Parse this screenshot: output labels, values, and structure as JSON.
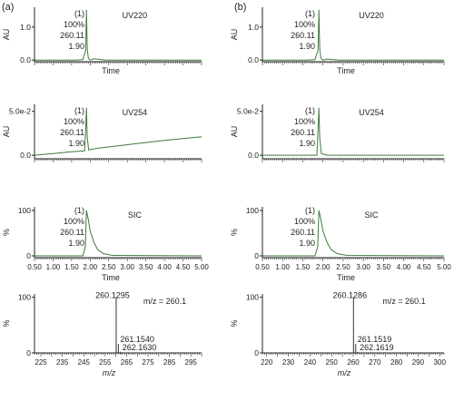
{
  "panel_labels": [
    "(a)",
    "(b)"
  ],
  "chart_data": [
    {
      "id": "a-uv220",
      "panel": "(a)",
      "type": "line",
      "title": "UV220",
      "xlabel": "Time",
      "ylabel": "AU",
      "xlim": [
        0.5,
        5.0
      ],
      "ylim": [
        -0.05,
        1.6
      ],
      "yticks": [
        0.0,
        1.0
      ],
      "ytick_labels": [
        "0.0",
        "1.0"
      ],
      "peak_annotation": [
        "(1)",
        "100%",
        "260.11",
        "1.90"
      ],
      "series": [
        {
          "color": "#3c7a3c",
          "x": [
            0.5,
            1.6,
            1.8,
            1.88,
            1.9,
            1.92,
            1.95,
            2.0,
            2.1,
            2.4,
            3.0,
            3.6,
            4.2,
            5.0
          ],
          "y": [
            0.0,
            0.0,
            0.01,
            0.3,
            1.52,
            0.35,
            0.05,
            0.0,
            0.04,
            0.0,
            0.0,
            0.0,
            0.0,
            0.0
          ]
        }
      ]
    },
    {
      "id": "a-uv254",
      "panel": "(a)",
      "type": "line",
      "title": "UV254",
      "xlabel": "",
      "ylabel": "AU",
      "xlim": [
        0.5,
        5.0
      ],
      "ylim": [
        -0.004,
        0.058
      ],
      "yticks": [
        0.0,
        0.05
      ],
      "ytick_labels": [
        "0.0",
        "5.0e-2"
      ],
      "peak_annotation": [
        "(1)",
        "100%",
        "260.11",
        "1.90"
      ],
      "series": [
        {
          "color": "#3c7a3c",
          "x": [
            0.5,
            1.0,
            1.5,
            1.85,
            1.88,
            1.9,
            1.92,
            1.96,
            2.2,
            3.0,
            4.0,
            5.0
          ],
          "y": [
            0.0,
            0.002,
            0.004,
            0.005,
            0.03,
            0.054,
            0.02,
            0.006,
            0.008,
            0.012,
            0.017,
            0.021
          ]
        }
      ]
    },
    {
      "id": "a-sic",
      "panel": "(a)",
      "type": "line",
      "title": "SIC",
      "xlabel": "Time",
      "ylabel": "%",
      "xlim": [
        0.5,
        5.0
      ],
      "ylim": [
        -4,
        108
      ],
      "yticks": [
        0,
        100
      ],
      "ytick_labels": [
        "0",
        "100"
      ],
      "xticks": [
        0.5,
        1.0,
        1.5,
        2.0,
        2.5,
        3.0,
        3.5,
        4.0,
        4.5,
        5.0
      ],
      "xtick_labels": [
        "0.50",
        "1.00",
        "1.50",
        "2.00",
        "2.50",
        "3.00",
        "3.50",
        "4.00",
        "4.50",
        "5.00"
      ],
      "peak_annotation": [
        "(1)",
        "100%",
        "260.11",
        "1.90"
      ],
      "series": [
        {
          "color": "#3c7a3c",
          "x": [
            0.5,
            1.8,
            1.87,
            1.9,
            1.95,
            2.0,
            2.1,
            2.2,
            2.35,
            2.6,
            5.0
          ],
          "y": [
            0,
            0,
            20,
            100,
            80,
            55,
            30,
            14,
            5,
            1,
            0
          ]
        }
      ]
    },
    {
      "id": "a-ms",
      "panel": "(a)",
      "type": "bar",
      "title": "m/z = 260.1",
      "xlabel": "m/z",
      "ylabel": "%",
      "xlim": [
        222,
        300
      ],
      "ylim": [
        0,
        106
      ],
      "yticks": [
        0,
        100
      ],
      "ytick_labels": [
        "0",
        "100"
      ],
      "xticks": [
        225,
        235,
        245,
        255,
        265,
        275,
        285,
        295
      ],
      "xtick_labels": [
        "225",
        "235",
        "245",
        "255",
        "265",
        "275",
        "285",
        "295"
      ],
      "peaks": [
        {
          "x": 260.1295,
          "y": 100,
          "label": "260.1295"
        },
        {
          "x": 261.154,
          "y": 16,
          "label": "261.1540"
        },
        {
          "x": 262.163,
          "y": 2,
          "label": "262.1630"
        }
      ]
    },
    {
      "id": "b-uv220",
      "panel": "(b)",
      "type": "line",
      "title": "UV220",
      "xlabel": "Time",
      "ylabel": "AU",
      "xlim": [
        0.5,
        5.0
      ],
      "ylim": [
        -0.05,
        1.6
      ],
      "yticks": [
        0.0,
        1.0
      ],
      "ytick_labels": [
        "0.0",
        "1.0"
      ],
      "peak_annotation": [
        "(1)",
        "100%",
        "260.11",
        "1.90"
      ],
      "series": [
        {
          "color": "#3c7a3c",
          "x": [
            0.5,
            1.6,
            1.8,
            1.88,
            1.9,
            1.92,
            1.95,
            2.0,
            2.1,
            2.4,
            3.0,
            3.6,
            4.2,
            5.0
          ],
          "y": [
            0.0,
            0.0,
            0.01,
            0.3,
            1.52,
            0.35,
            0.05,
            0.0,
            0.03,
            0.0,
            0.0,
            0.0,
            0.0,
            0.0
          ]
        }
      ]
    },
    {
      "id": "b-uv254",
      "panel": "(b)",
      "type": "line",
      "title": "UV254",
      "xlabel": "",
      "ylabel": "AU",
      "xlim": [
        0.5,
        5.0
      ],
      "ylim": [
        -0.004,
        0.058
      ],
      "yticks": [
        0.0,
        0.05
      ],
      "ytick_labels": [
        "0.0",
        "5.0e-2"
      ],
      "peak_annotation": [
        "(1)",
        "100%",
        "260.11",
        "1.90"
      ],
      "series": [
        {
          "color": "#3c7a3c",
          "x": [
            0.5,
            1.5,
            1.85,
            1.88,
            1.9,
            1.92,
            1.96,
            2.1,
            3.0,
            4.0,
            5.0
          ],
          "y": [
            0.0,
            0.0,
            0.0,
            0.03,
            0.054,
            0.02,
            0.002,
            0.0,
            0.0,
            0.0,
            0.0
          ]
        }
      ]
    },
    {
      "id": "b-sic",
      "panel": "(b)",
      "type": "line",
      "title": "SIC",
      "xlabel": "Time",
      "ylabel": "%",
      "xlim": [
        0.5,
        5.0
      ],
      "ylim": [
        -4,
        108
      ],
      "yticks": [
        0,
        100
      ],
      "ytick_labels": [
        "0",
        "100"
      ],
      "xticks": [
        0.5,
        1.0,
        1.5,
        2.0,
        2.5,
        3.0,
        3.5,
        4.0,
        4.5,
        5.0
      ],
      "xtick_labels": [
        "0.50",
        "1.00",
        "1.50",
        "2.00",
        "2.50",
        "3.00",
        "3.50",
        "4.00",
        "4.50",
        "5.00"
      ],
      "peak_annotation": [
        "(1)",
        "100%",
        "260.11",
        "1.90"
      ],
      "series": [
        {
          "color": "#3c7a3c",
          "x": [
            0.5,
            1.8,
            1.87,
            1.9,
            1.95,
            2.0,
            2.1,
            2.2,
            2.35,
            2.6,
            5.0
          ],
          "y": [
            0,
            0,
            20,
            100,
            80,
            55,
            30,
            14,
            5,
            1,
            0
          ]
        }
      ]
    },
    {
      "id": "b-ms",
      "panel": "(b)",
      "type": "bar",
      "title": "m/z = 260.1",
      "xlabel": "m/z",
      "ylabel": "%",
      "xlim": [
        218,
        302
      ],
      "ylim": [
        0,
        106
      ],
      "yticks": [
        0,
        100
      ],
      "ytick_labels": [
        "0",
        "100"
      ],
      "xticks": [
        220,
        230,
        240,
        250,
        260,
        270,
        280,
        290,
        300
      ],
      "xtick_labels": [
        "220",
        "230",
        "240",
        "250",
        "260",
        "270",
        "280",
        "290",
        "300"
      ],
      "peaks": [
        {
          "x": 260.1286,
          "y": 100,
          "label": "260.1286"
        },
        {
          "x": 261.1519,
          "y": 16,
          "label": "261.1519"
        },
        {
          "x": 262.1619,
          "y": 2,
          "label": "262.1619"
        }
      ]
    }
  ]
}
